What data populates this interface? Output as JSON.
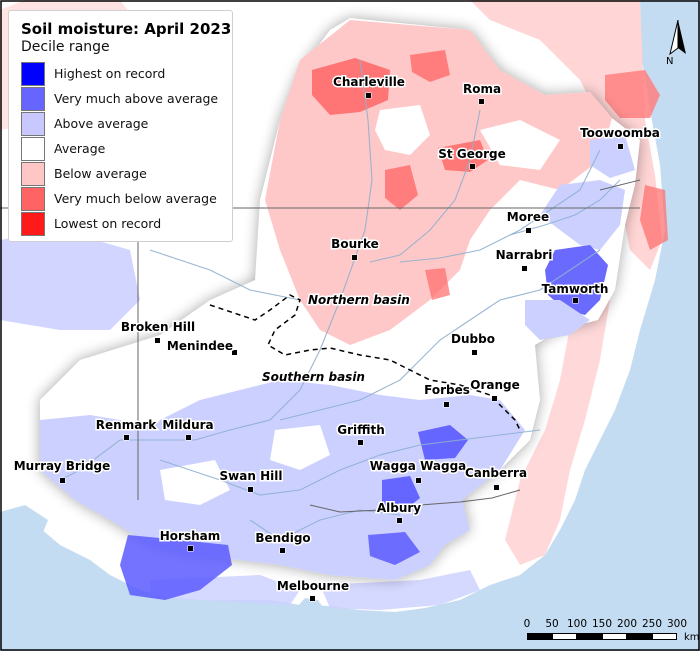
{
  "legend": {
    "title": "Soil moisture: April 2023",
    "subtitle": "Decile range",
    "items": [
      {
        "label": "Highest on record",
        "color": "#0000ff"
      },
      {
        "label": "Very much above average",
        "color": "#6666ff"
      },
      {
        "label": "Above average",
        "color": "#c8c8ff"
      },
      {
        "label": "Average",
        "color": "#ffffff"
      },
      {
        "label": "Below average",
        "color": "#ffc6c6"
      },
      {
        "label": "Very much below average",
        "color": "#ff6464"
      },
      {
        "label": "Lowest on record",
        "color": "#ff1a1a"
      }
    ]
  },
  "places": {
    "charleville": "Charleville",
    "roma": "Roma",
    "toowoomba": "Toowoomba",
    "st_george": "St George",
    "moree": "Moree",
    "bourke": "Bourke",
    "narrabri": "Narrabri",
    "tamworth": "Tamworth",
    "broken_hill": "Broken Hill",
    "menindee": "Menindee",
    "dubbo": "Dubbo",
    "forbes": "Forbes",
    "orange": "Orange",
    "renmark": "Renmark",
    "mildura": "Mildura",
    "griffith": "Griffith",
    "murray_bridge": "Murray Bridge",
    "swan_hill": "Swan Hill",
    "wagga_wagga": "Wagga Wagga",
    "canberra": "Canberra",
    "albury": "Albury",
    "horsham": "Horsham",
    "bendigo": "Bendigo",
    "melbourne": "Melbourne"
  },
  "basins": {
    "northern": "Northern basin",
    "southern": "Southern basin"
  },
  "scale": {
    "ticks": [
      "0",
      "50",
      "100",
      "150",
      "200",
      "250",
      "300"
    ],
    "unit": "km"
  },
  "north_label": "N",
  "colors": {
    "ocean": "#c4dcf2",
    "land": "#ffffff",
    "river": "#8fb0cf"
  }
}
